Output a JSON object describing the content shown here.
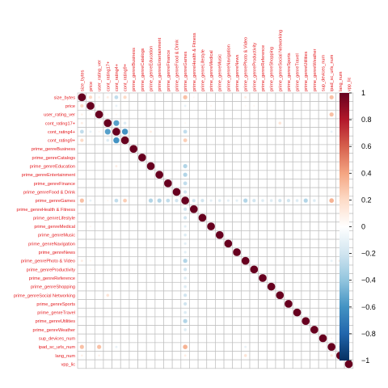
{
  "chart_data": {
    "type": "heatmap",
    "style": "circle-correlation-matrix",
    "grid": true,
    "legend": "right",
    "variables": [
      "size_bytes",
      "price",
      "user_rating_ver",
      "cont_rating17+",
      "cont_rating4+",
      "cont_rating9+",
      "prime_genreBusiness",
      "prime_genreCatalogs",
      "prime_genreEducation",
      "prime_genreEntertainment",
      "prime_genreFinance",
      "prime_genreFood & Drink",
      "prime_genreGames",
      "prime_genreHealth & Fitness",
      "prime_genreLifestyle",
      "prime_genreMedical",
      "prime_genreMusic",
      "prime_genreNavigation",
      "prime_genreNews",
      "prime_genrePhoto & Video",
      "prime_genreProductivity",
      "prime_genreReference",
      "prime_genreShopping",
      "prime_genreSocial Networking",
      "prime_genreSports",
      "prime_genreTravel",
      "prime_genreUtilities",
      "prime_genreWeather",
      "sup_devices_num",
      "ipad_sc_urls_num",
      "lang_num",
      "vpp_lic"
    ],
    "colorbar": {
      "ticks": [
        1,
        0.8,
        0.6,
        0.4,
        0.2,
        0,
        -0.2,
        -0.4,
        -0.6,
        -0.8,
        -1
      ],
      "tick_labels": [
        "1",
        "0.8",
        "0.6",
        "0.4",
        "0.2",
        "0",
        "−0.2",
        "−0.4",
        "−0.6",
        "−0.8",
        "−1"
      ],
      "range": [
        -1,
        1
      ],
      "colors": [
        "#67001f",
        "#b2182b",
        "#d6604d",
        "#f4a582",
        "#fddbc7",
        "#ffffff",
        "#d1e5f0",
        "#92c5de",
        "#4393c3",
        "#2166ac",
        "#053061"
      ]
    },
    "correlations": [
      [
        0,
        1,
        0.2
      ],
      [
        0,
        2,
        0.08
      ],
      [
        0,
        3,
        0.1
      ],
      [
        0,
        4,
        -0.25
      ],
      [
        0,
        5,
        0.2
      ],
      [
        0,
        12,
        0.3
      ],
      [
        0,
        13,
        0.05
      ],
      [
        0,
        19,
        0.1
      ],
      [
        0,
        29,
        0.3
      ],
      [
        0,
        30,
        0.08
      ],
      [
        1,
        2,
        0.05
      ],
      [
        1,
        4,
        -0.1
      ],
      [
        1,
        12,
        -0.1
      ],
      [
        1,
        15,
        0.05
      ],
      [
        1,
        19,
        0.05
      ],
      [
        1,
        20,
        0.05
      ],
      [
        2,
        3,
        0.05
      ],
      [
        2,
        4,
        0.05
      ],
      [
        2,
        29,
        0.3
      ],
      [
        2,
        30,
        0.08
      ],
      [
        3,
        4,
        -0.55
      ],
      [
        3,
        5,
        -0.15
      ],
      [
        3,
        12,
        0.05
      ],
      [
        3,
        23,
        0.15
      ],
      [
        4,
        5,
        -0.6
      ],
      [
        4,
        8,
        0.1
      ],
      [
        4,
        12,
        -0.25
      ],
      [
        4,
        29,
        -0.1
      ],
      [
        5,
        12,
        0.25
      ],
      [
        8,
        12,
        -0.3
      ],
      [
        9,
        12,
        -0.3
      ],
      [
        10,
        12,
        -0.25
      ],
      [
        11,
        12,
        -0.2
      ],
      [
        12,
        13,
        -0.2
      ],
      [
        12,
        14,
        -0.2
      ],
      [
        12,
        15,
        -0.12
      ],
      [
        12,
        16,
        -0.15
      ],
      [
        12,
        17,
        -0.12
      ],
      [
        12,
        18,
        -0.12
      ],
      [
        12,
        19,
        -0.3
      ],
      [
        12,
        20,
        -0.2
      ],
      [
        12,
        21,
        -0.15
      ],
      [
        12,
        22,
        -0.15
      ],
      [
        12,
        23,
        -0.2
      ],
      [
        12,
        24,
        -0.2
      ],
      [
        12,
        25,
        -0.15
      ],
      [
        12,
        26,
        -0.3
      ],
      [
        12,
        27,
        -0.15
      ],
      [
        12,
        29,
        0.35
      ],
      [
        12,
        30,
        0.1
      ],
      [
        19,
        29,
        -0.1
      ],
      [
        19,
        30,
        0.15
      ],
      [
        28,
        29,
        0.05
      ],
      [
        29,
        30,
        0.12
      ]
    ]
  }
}
